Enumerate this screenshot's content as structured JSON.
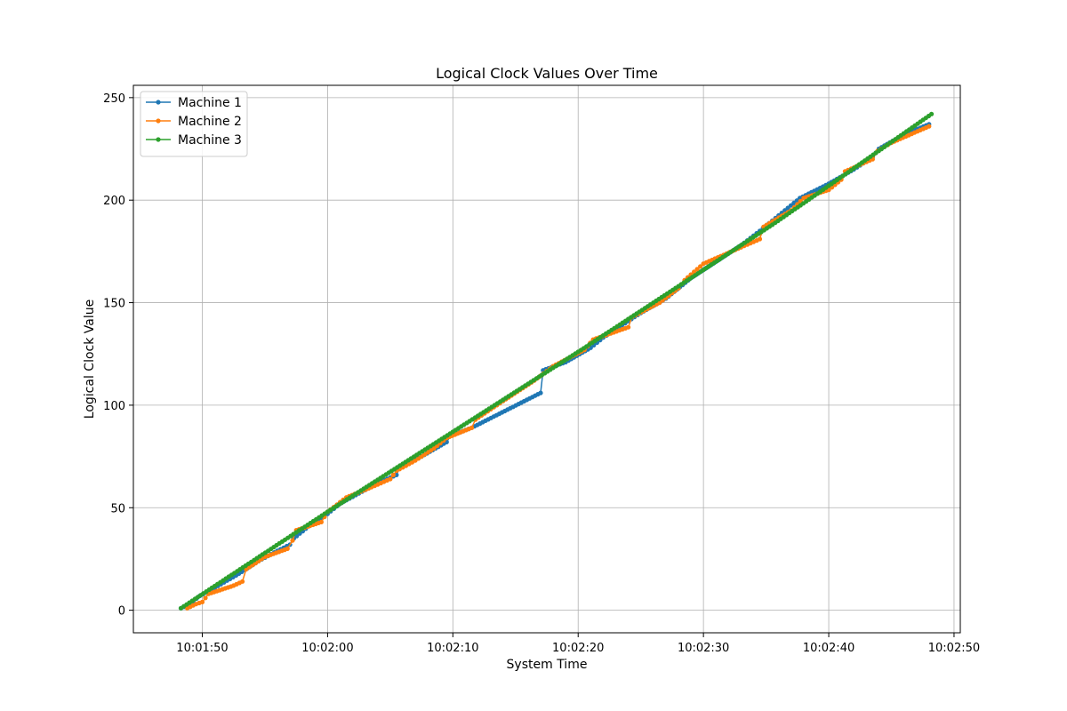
{
  "chart_data": {
    "type": "line",
    "title": "Logical Clock Values Over Time",
    "xlabel": "System Time",
    "ylabel": "Logical Clock Value",
    "x_unit": "seconds within hh:mm:ss day clock",
    "xlim": [
      "10:01:44.5",
      "10:02:50.5"
    ],
    "ylim": [
      -11,
      256
    ],
    "x_ticks": [
      "10:01:50",
      "10:02:00",
      "10:02:10",
      "10:02:20",
      "10:02:30",
      "10:02:40",
      "10:02:50"
    ],
    "y_ticks": [
      0,
      50,
      100,
      150,
      200,
      250
    ],
    "grid": true,
    "legend_position": "upper-left",
    "series": [
      {
        "name": "Machine 1",
        "color": "#1f77b4",
        "points": [
          [
            "10:01:48.3",
            1
          ],
          [
            "10:01:49.0",
            3
          ],
          [
            "10:01:49.8",
            7
          ],
          [
            "10:01:51.0",
            11
          ],
          [
            "10:01:52.7",
            17
          ],
          [
            "10:01:54.5",
            24
          ],
          [
            "10:01:56.0",
            29
          ],
          [
            "10:01:57.0",
            32
          ],
          [
            "10:01:57.3",
            35
          ],
          [
            "10:01:58.5",
            41
          ],
          [
            "10:02:00.0",
            47
          ],
          [
            "10:02:01.0",
            52
          ],
          [
            "10:02:02.5",
            57
          ],
          [
            "10:02:04.0",
            62
          ],
          [
            "10:02:05.5",
            66
          ],
          [
            "10:02:05.8",
            70
          ],
          [
            "10:02:07.5",
            75
          ],
          [
            "10:02:09.5",
            82
          ],
          [
            "10:02:09.8",
            85
          ],
          [
            "10:02:11.5",
            89
          ],
          [
            "10:02:17.0",
            106
          ],
          [
            "10:02:17.2",
            117
          ],
          [
            "10:02:19.0",
            121
          ],
          [
            "10:02:21.0",
            128
          ],
          [
            "10:02:22.0",
            133
          ],
          [
            "10:02:23.5",
            139
          ],
          [
            "10:02:25.0",
            145
          ],
          [
            "10:02:27.0",
            152
          ],
          [
            "10:02:29.0",
            162
          ],
          [
            "10:02:31.0",
            170
          ],
          [
            "10:02:33.0",
            178
          ],
          [
            "10:02:34.5",
            185
          ],
          [
            "10:02:35.5",
            190
          ],
          [
            "10:02:36.5",
            195
          ],
          [
            "10:02:37.7",
            201
          ],
          [
            "10:02:40.0",
            208
          ],
          [
            "10:02:42.0",
            215
          ],
          [
            "10:02:43.5",
            221
          ],
          [
            "10:02:44.0",
            225
          ],
          [
            "10:02:46.0",
            232
          ],
          [
            "10:02:48.0",
            237
          ]
        ]
      },
      {
        "name": "Machine 2",
        "color": "#ff7f0e",
        "points": [
          [
            "10:01:48.8",
            1
          ],
          [
            "10:01:49.5",
            3
          ],
          [
            "10:01:50.0",
            4
          ],
          [
            "10:01:50.5",
            8
          ],
          [
            "10:01:52.5",
            12
          ],
          [
            "10:01:53.2",
            14
          ],
          [
            "10:01:53.5",
            20
          ],
          [
            "10:01:55.0",
            26
          ],
          [
            "10:01:56.8",
            30
          ],
          [
            "10:01:57.2",
            34
          ],
          [
            "10:01:57.5",
            39
          ],
          [
            "10:01:59.5",
            43
          ],
          [
            "10:02:00.0",
            48
          ],
          [
            "10:02:01.5",
            55
          ],
          [
            "10:02:03.5",
            60
          ],
          [
            "10:02:05.0",
            64
          ],
          [
            "10:02:05.5",
            68
          ],
          [
            "10:02:07.0",
            73
          ],
          [
            "10:02:08.5",
            79
          ],
          [
            "10:02:09.5",
            84
          ],
          [
            "10:02:11.5",
            89
          ],
          [
            "10:02:11.8",
            93
          ],
          [
            "10:02:14.0",
            102
          ],
          [
            "10:02:16.5",
            112
          ],
          [
            "10:02:18.0",
            119
          ],
          [
            "10:02:20.5",
            127
          ],
          [
            "10:02:21.2",
            132
          ],
          [
            "10:02:24.0",
            138
          ],
          [
            "10:02:24.3",
            143
          ],
          [
            "10:02:26.5",
            150
          ],
          [
            "10:02:28.0",
            157
          ],
          [
            "10:02:28.5",
            161
          ],
          [
            "10:02:30.0",
            169
          ],
          [
            "10:02:33.0",
            177
          ],
          [
            "10:02:34.5",
            181
          ],
          [
            "10:02:34.8",
            187
          ],
          [
            "10:02:37.0",
            195
          ],
          [
            "10:02:38.0",
            201
          ],
          [
            "10:02:40.0",
            205
          ],
          [
            "10:02:41.0",
            210
          ],
          [
            "10:02:41.3",
            214
          ],
          [
            "10:02:43.5",
            220
          ],
          [
            "10:02:43.9",
            224
          ],
          [
            "10:02:45.0",
            228
          ],
          [
            "10:02:48.0",
            236
          ]
        ]
      },
      {
        "name": "Machine 3",
        "color": "#2ca02c",
        "points": [
          [
            "10:01:48.3",
            1
          ],
          [
            "10:01:57.5",
            38
          ],
          [
            "10:02:00.0",
            48
          ],
          [
            "10:02:10.0",
            87
          ],
          [
            "10:02:20.0",
            126
          ],
          [
            "10:02:30.0",
            166
          ],
          [
            "10:02:35.5",
            188
          ],
          [
            "10:02:40.0",
            207
          ],
          [
            "10:02:48.2",
            242
          ]
        ]
      }
    ]
  }
}
